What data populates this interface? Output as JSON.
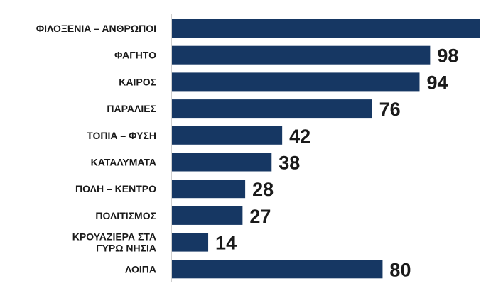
{
  "chart_data": {
    "type": "bar",
    "orientation": "horizontal",
    "categories": [
      "ΦΙΛΟΞΕΝΙΑ – ΑΝΘΡΩΠΟΙ",
      "ΦΑΓΗΤΟ",
      "ΚΑΙΡΟΣ",
      "ΠΑΡΑΛΙΕΣ",
      "ΤΟΠΙΑ – ΦΥΣΗ",
      "ΚΑΤΑΛΥΜΑΤΑ",
      "ΠΟΛΗ – ΚΕΝΤΡΟ",
      "ΠΟΛΙΤΙΣΜΟΣ",
      "ΚΡΟΥΑΖΙΕΡΑ ΣΤΑ ΓΥΡΩ ΝΗΣΙΑ",
      "ΛΟΙΠΑ"
    ],
    "values": [
      117,
      98,
      94,
      76,
      42,
      38,
      28,
      27,
      14,
      80
    ],
    "value_labels": [
      "",
      "98",
      "94",
      "76",
      "42",
      "38",
      "28",
      "27",
      "14",
      "80"
    ],
    "title": "",
    "xlabel": "",
    "ylabel": "",
    "xlim": [
      0,
      117
    ],
    "grid": false,
    "legend": "none",
    "colors": {
      "bar": "#163763",
      "text": "#1a1a1a",
      "axis": "#cfcfcf"
    }
  }
}
